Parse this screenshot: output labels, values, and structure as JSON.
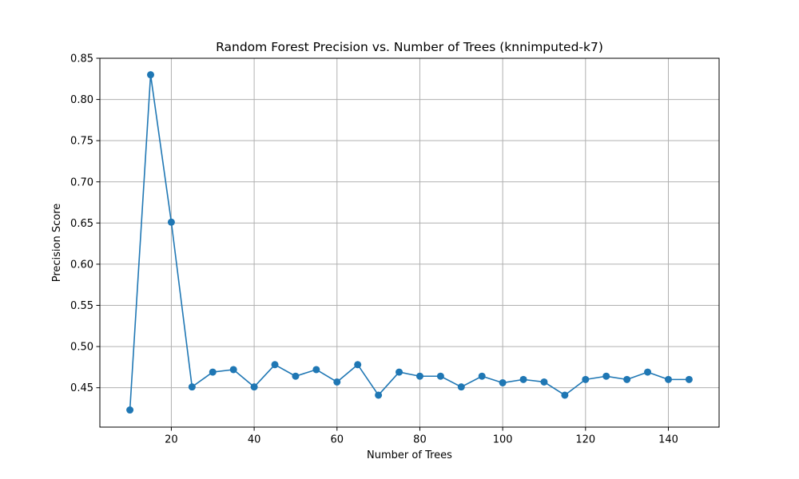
{
  "chart_data": {
    "type": "line",
    "title": "Random Forest Precision vs. Number of Trees (knnimputed-k7)",
    "xlabel": "Number of Trees",
    "ylabel": "Precision Score",
    "xlim": [
      2.75,
      152.25
    ],
    "ylim": [
      0.4022,
      0.85
    ],
    "xticks": [
      20,
      40,
      60,
      80,
      100,
      120,
      140
    ],
    "yticks": [
      0.45,
      0.5,
      0.55,
      0.6,
      0.65,
      0.7,
      0.75,
      0.8,
      0.85
    ],
    "xtick_labels": [
      "20",
      "40",
      "60",
      "80",
      "100",
      "120",
      "140"
    ],
    "ytick_labels": [
      "0.45",
      "0.50",
      "0.55",
      "0.60",
      "0.65",
      "0.70",
      "0.75",
      "0.80",
      "0.85"
    ],
    "grid": true,
    "marker": "circle",
    "series": [
      {
        "color": "#1f77b4",
        "x": [
          10,
          15,
          20,
          25,
          30,
          35,
          40,
          45,
          50,
          55,
          60,
          65,
          70,
          75,
          80,
          85,
          90,
          95,
          100,
          105,
          110,
          115,
          120,
          125,
          130,
          135,
          140,
          145
        ],
        "y": [
          0.423,
          0.83,
          0.651,
          0.451,
          0.469,
          0.472,
          0.451,
          0.478,
          0.464,
          0.472,
          0.457,
          0.478,
          0.441,
          0.469,
          0.464,
          0.464,
          0.451,
          0.464,
          0.456,
          0.46,
          0.457,
          0.441,
          0.46,
          0.464,
          0.46,
          0.469,
          0.46,
          0.46
        ]
      }
    ]
  }
}
